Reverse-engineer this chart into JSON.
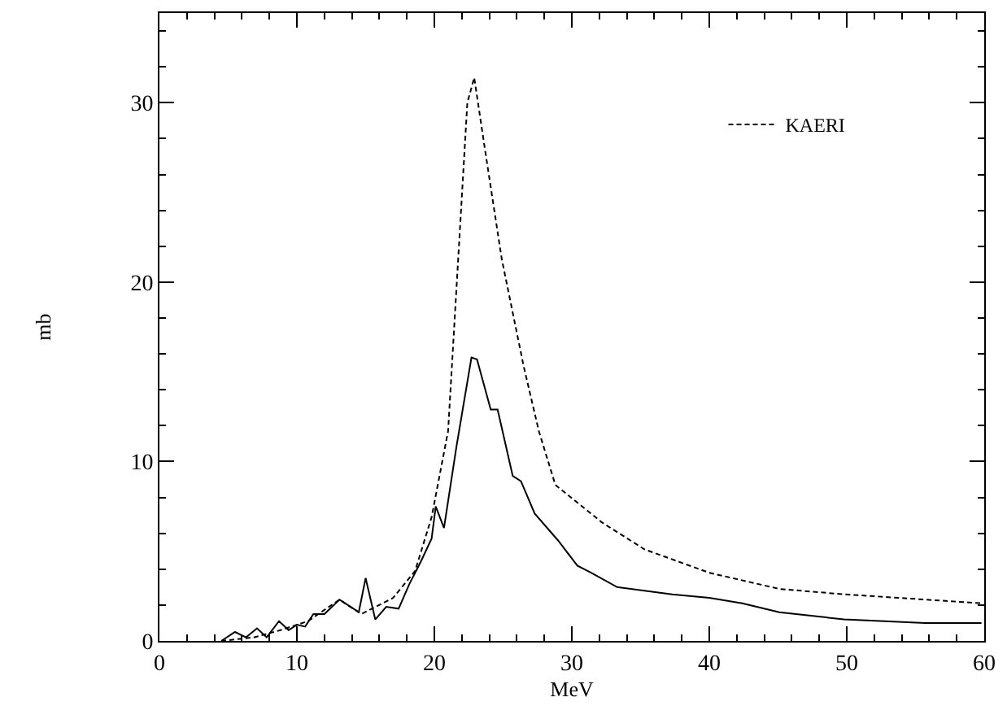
{
  "chart_data": {
    "type": "line",
    "xlabel": "MeV",
    "ylabel": "mb",
    "xlim": [
      0,
      60
    ],
    "xticks": [
      0,
      10,
      20,
      30,
      40,
      50,
      60
    ],
    "ylim": [
      0,
      35
    ],
    "yticks": [
      0,
      10,
      20,
      30
    ],
    "legend": "top right",
    "marker": "none",
    "series": [
      {
        "color": "#000000",
        "line_style": "solid",
        "x": [
          4.5,
          5.5,
          6.3,
          7.1,
          7.8,
          8.7,
          9.4,
          10,
          10.6,
          11.2,
          12,
          13.1,
          14.5,
          15,
          15.7,
          16.5,
          17.4,
          18.2,
          19,
          19.8,
          20.1,
          20.7,
          21.6,
          22.7,
          23.1,
          24.1,
          24.6,
          25.7,
          26.3,
          27.3,
          29,
          30.4,
          31.4,
          33.3,
          37.3,
          40,
          42.4,
          45.1,
          49.8,
          55.7,
          59.8
        ],
        "values": [
          0,
          0.5,
          0.2,
          0.7,
          0.2,
          1.1,
          0.6,
          0.9,
          0.8,
          1.5,
          1.5,
          2.3,
          1.6,
          3.5,
          1.2,
          1.9,
          1.8,
          3.2,
          4.4,
          5.7,
          7.5,
          6.3,
          10.8,
          15.8,
          15.7,
          12.9,
          12.9,
          9.2,
          8.9,
          7.1,
          5.6,
          4.2,
          3.8,
          3.0,
          2.6,
          2.4,
          2.1,
          1.6,
          1.2,
          1.0,
          1.0
        ]
      },
      {
        "name": "KAERI",
        "color": "#000000",
        "line_style": "dashed",
        "x": [
          4.5,
          6.9,
          8.8,
          10.8,
          13.1,
          14.7,
          17,
          18.6,
          19.8,
          21,
          22.4,
          22.9,
          23.7,
          24.9,
          26.5,
          27.6,
          28.8,
          32.2,
          35.3,
          40,
          45.1,
          49.8,
          59.8
        ],
        "values": [
          0,
          0.2,
          0.6,
          1.1,
          2.3,
          1.5,
          2.4,
          3.9,
          6.9,
          11.7,
          30.0,
          31.4,
          27.3,
          21.3,
          15.3,
          11.7,
          8.7,
          6.6,
          5.1,
          3.8,
          2.9,
          2.6,
          2.1
        ]
      }
    ]
  }
}
